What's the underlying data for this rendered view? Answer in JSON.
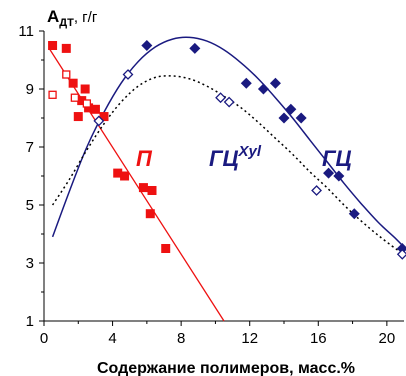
{
  "chart_data": {
    "type": "scatter",
    "xlabel": "Содержание полимеров, масс.%",
    "ylabel": {
      "main": "А",
      "sub": "ДТ",
      "unit": ", г/г"
    },
    "xlim": [
      0,
      21
    ],
    "ylim": [
      1,
      11
    ],
    "xticks": [
      0,
      4,
      8,
      12,
      16,
      20
    ],
    "yticks": [
      1,
      3,
      5,
      7,
      9,
      11
    ],
    "colors": {
      "red": "#ee1111",
      "blue": "#1a1a80",
      "black": "#000000"
    },
    "annotations": [
      {
        "text": "П",
        "color": "#ee1111"
      },
      {
        "text": "ГЦ",
        "sup": "Xyl",
        "color": "#1a1a80"
      },
      {
        "text": "ГЦ",
        "color": "#1a1a80"
      }
    ],
    "series": [
      {
        "marker": "filled-square",
        "color": "#ee1111",
        "points": [
          [
            0.5,
            10.5
          ],
          [
            1.3,
            10.4
          ],
          [
            1.7,
            9.2
          ],
          [
            2.4,
            9.0
          ],
          [
            2.2,
            8.6
          ],
          [
            2.6,
            8.35
          ],
          [
            3.0,
            8.3
          ],
          [
            2.0,
            8.05
          ],
          [
            3.5,
            8.05
          ],
          [
            4.3,
            6.1
          ],
          [
            4.7,
            6.0
          ],
          [
            5.8,
            5.6
          ],
          [
            6.3,
            5.5
          ],
          [
            6.2,
            4.7
          ],
          [
            7.1,
            3.5
          ]
        ]
      },
      {
        "marker": "open-square",
        "color": "#ee1111",
        "points": [
          [
            0.5,
            8.8
          ],
          [
            1.3,
            9.5
          ],
          [
            1.8,
            8.7
          ],
          [
            2.5,
            8.5
          ]
        ]
      },
      {
        "marker": "line",
        "color": "#ee1111",
        "points": [
          [
            0.3,
            10.4
          ],
          [
            10.5,
            1.0
          ]
        ]
      },
      {
        "marker": "filled-diamond",
        "color": "#1a1a80",
        "points": [
          [
            6.0,
            10.5
          ],
          [
            8.8,
            10.4
          ],
          [
            11.8,
            9.2
          ],
          [
            12.8,
            9.0
          ],
          [
            13.5,
            9.2
          ],
          [
            14.0,
            8.0
          ],
          [
            14.4,
            8.3
          ],
          [
            15.0,
            8.0
          ],
          [
            16.6,
            6.1
          ],
          [
            17.2,
            6.0
          ],
          [
            18.1,
            4.7
          ],
          [
            20.9,
            3.5
          ]
        ]
      },
      {
        "marker": "open-diamond",
        "color": "#1a1a80",
        "points": [
          [
            3.2,
            7.9
          ],
          [
            4.9,
            9.5
          ],
          [
            10.3,
            8.7
          ],
          [
            10.8,
            8.55
          ],
          [
            15.9,
            5.5
          ],
          [
            20.9,
            3.3
          ]
        ]
      },
      {
        "marker": "solid-curve",
        "color": "#1a1a80",
        "points": [
          [
            0.5,
            3.9
          ],
          [
            1.5,
            5.5
          ],
          [
            2.5,
            7.0
          ],
          [
            3.5,
            8.2
          ],
          [
            4.5,
            9.2
          ],
          [
            5.5,
            9.95
          ],
          [
            6.5,
            10.45
          ],
          [
            7.5,
            10.72
          ],
          [
            8.5,
            10.78
          ],
          [
            9.5,
            10.65
          ],
          [
            10.5,
            10.35
          ],
          [
            11.5,
            9.9
          ],
          [
            12.5,
            9.35
          ],
          [
            13.5,
            8.7
          ],
          [
            14.5,
            8.0
          ],
          [
            15.5,
            7.25
          ],
          [
            16.5,
            6.5
          ],
          [
            17.5,
            5.75
          ],
          [
            18.5,
            5.05
          ],
          [
            19.5,
            4.4
          ],
          [
            20.5,
            3.85
          ],
          [
            21.0,
            3.55
          ]
        ]
      },
      {
        "marker": "dotted-curve",
        "color": "#000000",
        "points": [
          [
            0.5,
            5.0
          ],
          [
            1.5,
            5.9
          ],
          [
            2.5,
            6.9
          ],
          [
            3.5,
            7.8
          ],
          [
            4.5,
            8.55
          ],
          [
            5.5,
            9.1
          ],
          [
            6.5,
            9.4
          ],
          [
            7.5,
            9.45
          ],
          [
            8.5,
            9.35
          ],
          [
            9.5,
            9.1
          ],
          [
            10.5,
            8.75
          ],
          [
            11.5,
            8.35
          ],
          [
            12.5,
            7.85
          ],
          [
            13.5,
            7.3
          ],
          [
            14.5,
            6.75
          ],
          [
            15.5,
            6.15
          ],
          [
            16.5,
            5.6
          ],
          [
            17.5,
            5.0
          ],
          [
            18.5,
            4.45
          ],
          [
            19.5,
            3.95
          ],
          [
            20.5,
            3.5
          ],
          [
            21.0,
            3.3
          ]
        ]
      }
    ]
  }
}
